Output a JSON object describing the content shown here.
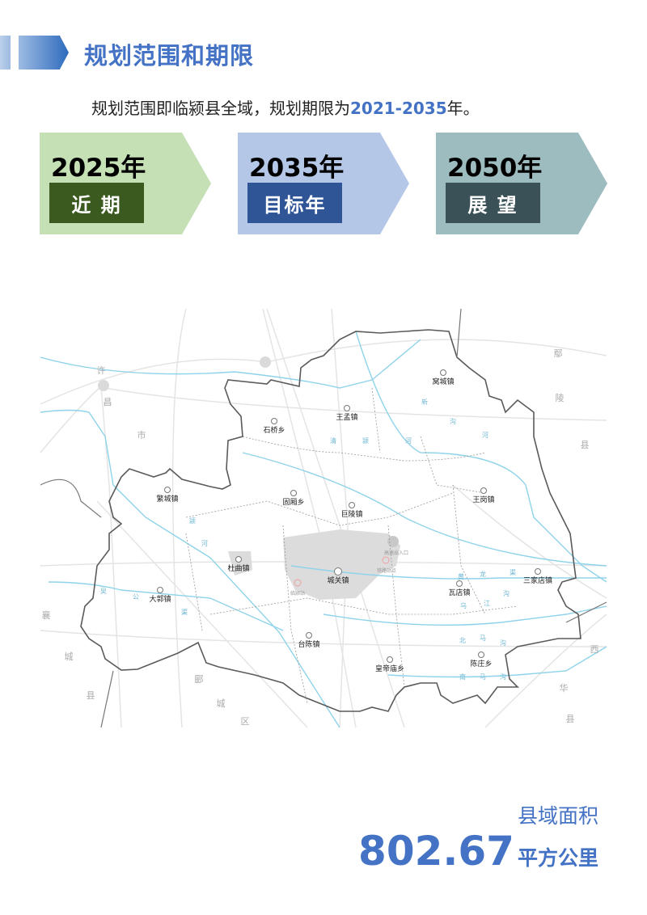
{
  "header": {
    "title": "规划范围和期限"
  },
  "intro": {
    "text_prefix": "规划范围即临颍县全域，规划期限为",
    "period": "2021-2035",
    "text_suffix": "年。"
  },
  "timeline": [
    {
      "year": "2025年",
      "label": "近 期",
      "bg": "#c5e0b4",
      "tag_bg": "#3a5a1f"
    },
    {
      "year": "2035年",
      "label": "目标年",
      "bg": "#b4c7e7",
      "tag_bg": "#2f5597"
    },
    {
      "year": "2050年",
      "label": "展 望",
      "bg": "#9dbcbf",
      "tag_bg": "#3a5158"
    }
  ],
  "map": {
    "towns": [
      "窝城镇",
      "王孟镇",
      "石桥乡",
      "繁城镇",
      "固厢乡",
      "巨陵镇",
      "王岗镇",
      "杜曲镇",
      "城关镇",
      "大郭镇",
      "瓦店镇",
      "三家店镇",
      "台陈镇",
      "皇帝庙乡",
      "陈庄乡"
    ],
    "regions": [
      "许",
      "昌",
      "市",
      "鄢",
      "陵",
      "县",
      "襄",
      "城",
      "县",
      "郾",
      "城",
      "区",
      "西",
      "华",
      "县"
    ],
    "rivers": [
      "新",
      "沟",
      "河",
      "清",
      "颍",
      "河",
      "颍",
      "河",
      "吴",
      "公",
      "渠",
      "黄",
      "龙",
      "渠",
      "乌",
      "江",
      "沟",
      "北",
      "马",
      "沟",
      "南",
      "马",
      "沟"
    ],
    "stations": [
      "高速出入口",
      "铁路站点",
      "临颍站"
    ],
    "colors": {
      "boundary": "#5a5a5a",
      "river": "#8fd3ea",
      "road": "#e4e4e4",
      "urban": "#dcdcdc"
    }
  },
  "summary": {
    "label": "县域面积",
    "value": "802.67",
    "unit": "平方公里"
  }
}
